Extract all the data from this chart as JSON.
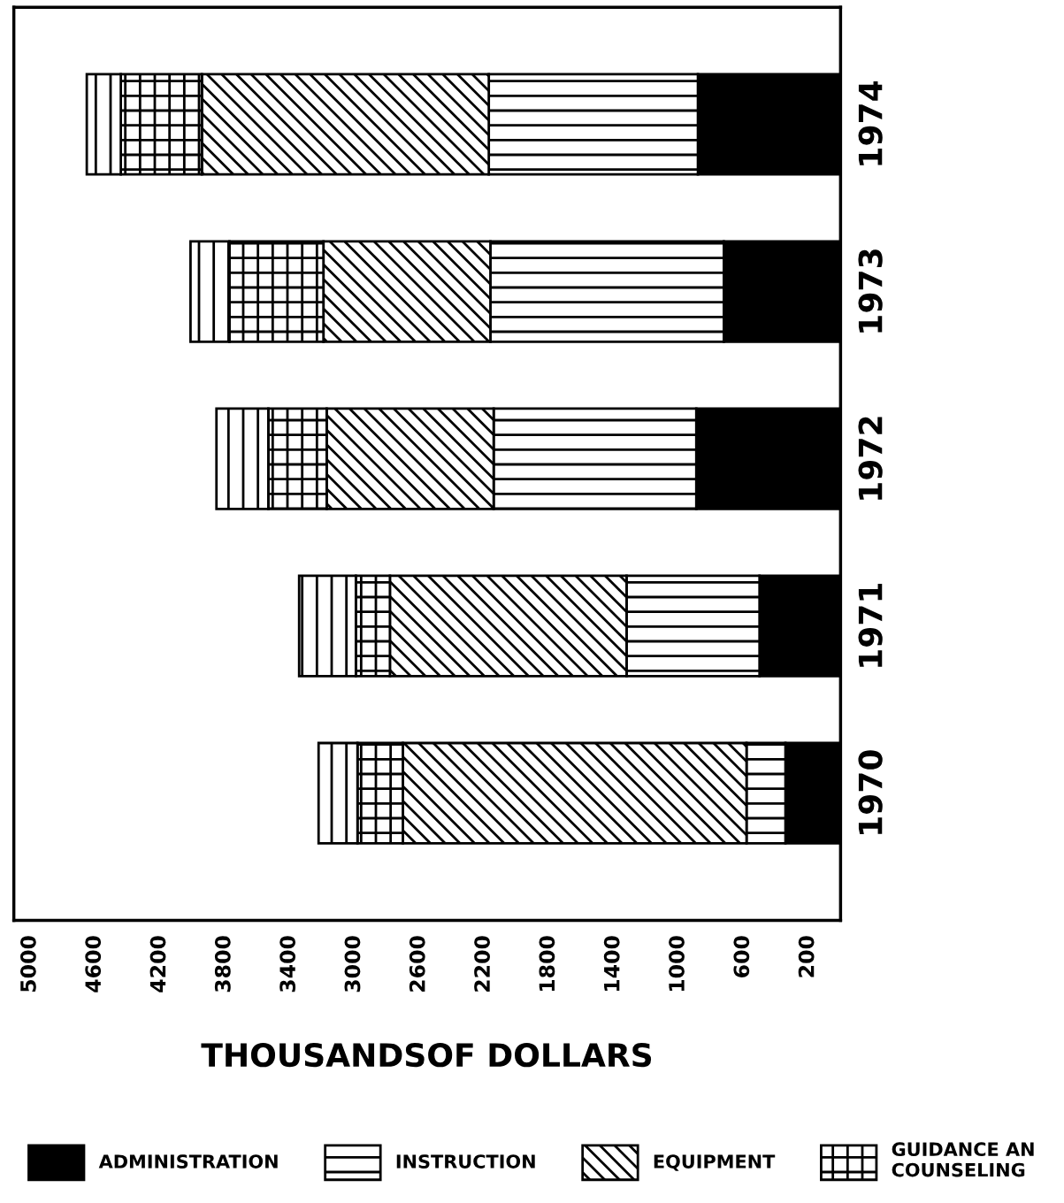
{
  "chart_data": {
    "type": "bar",
    "orientation": "horizontal",
    "stacked": true,
    "xlabel": "THOUSANDSOF DOLLARS",
    "categories": [
      "1974",
      "1973",
      "1972",
      "1971",
      "1970"
    ],
    "series": [
      {
        "name": "ADMINISTRATION",
        "color": "#000000",
        "values": [
          880,
          720,
          890,
          500,
          340
        ]
      },
      {
        "name": "INSTRUCTION",
        "color": "#000000",
        "values": [
          1290,
          1440,
          1250,
          820,
          240
        ]
      },
      {
        "name": "EQUIPMENT",
        "color": "#000000",
        "values": [
          1770,
          1030,
          1030,
          1460,
          2120
        ]
      },
      {
        "name": "GUIDANCE AN\nCOUNSELING",
        "color": "#000000",
        "values": [
          500,
          580,
          360,
          210,
          280
        ]
      },
      {
        "color": "#000000",
        "values": [
          210,
          240,
          320,
          350,
          240
        ]
      }
    ],
    "xlim": [
      5100,
      0
    ],
    "xticks": [
      5000,
      4600,
      4200,
      3800,
      3400,
      3000,
      2600,
      2200,
      1800,
      1400,
      1000,
      600,
      200
    ],
    "grid": false,
    "legend": "bottom"
  }
}
